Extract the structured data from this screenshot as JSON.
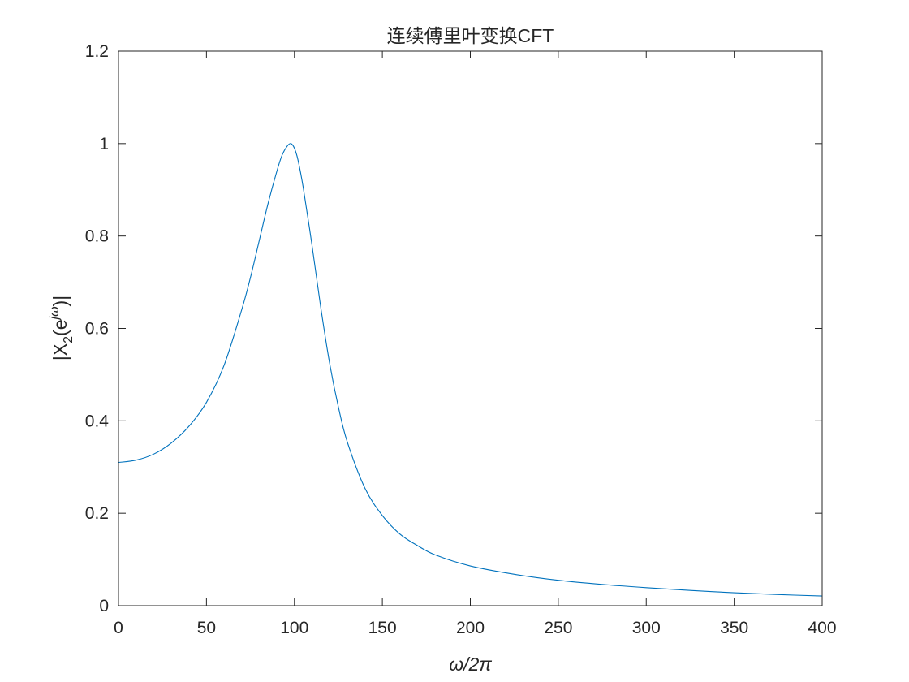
{
  "chart_data": {
    "type": "line",
    "title": "连续傅里叶变换CFT",
    "xlabel": "ω/2π",
    "ylabel": {
      "prefix": "|X",
      "sub": "2",
      "mid": "(e",
      "sup": "jω",
      "suffix": ")|"
    },
    "xlim": [
      0,
      400
    ],
    "ylim": [
      0,
      1.2
    ],
    "xticks": [
      0,
      50,
      100,
      150,
      200,
      250,
      300,
      350,
      400
    ],
    "xtick_labels": [
      "0",
      "50",
      "100",
      "150",
      "200",
      "250",
      "300",
      "350",
      "400"
    ],
    "yticks": [
      0,
      0.2,
      0.4,
      0.6,
      0.8,
      1,
      1.2
    ],
    "ytick_labels": [
      "0",
      "0.2",
      "0.4",
      "0.6",
      "0.8",
      "1",
      "1.2"
    ],
    "grid": false,
    "series": [
      {
        "color": "#0072BD",
        "x": [
          0,
          10,
          20,
          30,
          40,
          50,
          60,
          70,
          75,
          80,
          85,
          90,
          93,
          96,
          98,
          100,
          102,
          105,
          110,
          115,
          120,
          125,
          130,
          140,
          150,
          160,
          170,
          180,
          200,
          225,
          250,
          275,
          300,
          325,
          350,
          375,
          400
        ],
        "y": [
          0.31,
          0.315,
          0.328,
          0.352,
          0.388,
          0.44,
          0.52,
          0.64,
          0.71,
          0.79,
          0.87,
          0.94,
          0.975,
          0.995,
          1.0,
          0.99,
          0.965,
          0.905,
          0.78,
          0.645,
          0.525,
          0.43,
          0.355,
          0.255,
          0.195,
          0.155,
          0.13,
          0.11,
          0.086,
          0.068,
          0.055,
          0.046,
          0.039,
          0.033,
          0.028,
          0.024,
          0.021
        ]
      }
    ]
  }
}
